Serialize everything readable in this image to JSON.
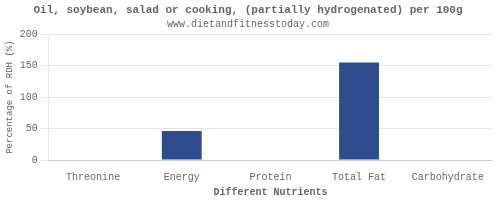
{
  "chart_data": {
    "type": "bar",
    "title": "Oil, soybean, salad or cooking, (partially hydrogenated) per 100g",
    "subtitle": "www.dietandfitnesstoday.com",
    "xlabel": "Different Nutrients",
    "ylabel": "Percentage of RDH (%)",
    "categories": [
      "Threonine",
      "Energy",
      "Protein",
      "Total Fat",
      "Carbohydrate"
    ],
    "values": [
      0,
      46,
      0,
      155,
      0
    ],
    "color": "#2e4d8e",
    "ylim": [
      0,
      200
    ],
    "yticks": [
      0,
      50,
      100,
      150,
      200
    ],
    "grid": true
  }
}
